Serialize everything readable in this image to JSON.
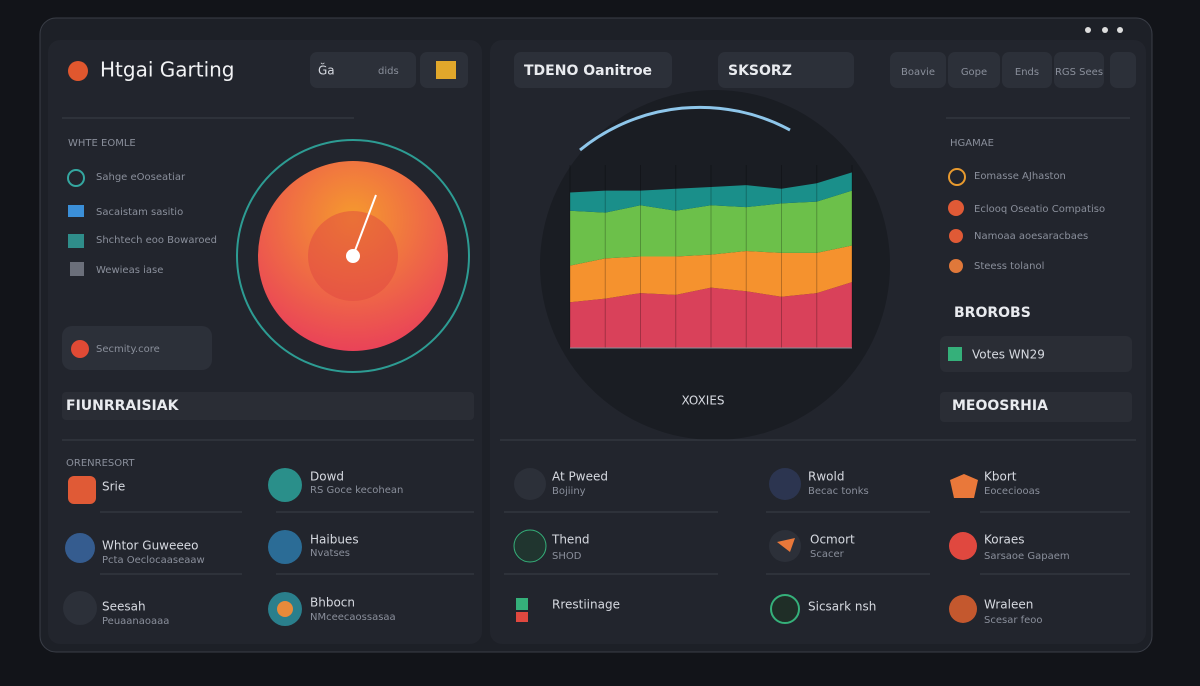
{
  "left": {
    "brand": "Htgai Garting",
    "buttons": [
      "Ğa",
      "dids"
    ],
    "section_title": "WHTE EOMLE",
    "items": [
      "Sahge eOoseatiar",
      "Sacaistam sasitio",
      "Shchtech eoo Bowaroed",
      "Wewieas iase"
    ],
    "security": "Secmity.core",
    "banner": "FIUNRRAISIAK",
    "list_title": "ORENRESORT",
    "list": [
      {
        "title": "Srie",
        "subtitle": null
      },
      {
        "title": "Dowd",
        "subtitle": "RS Goce kecohean"
      },
      {
        "title": "Whtor Guweeeo",
        "subtitle": "Pcta Oeclocaaseaaw"
      },
      {
        "title": "Haibues",
        "subtitle": "Nvatses"
      },
      {
        "title": "Seesah",
        "subtitle": "Peuaanaoaaa"
      },
      {
        "title": "Bhbocn",
        "subtitle": "NMceecaossasaa"
      }
    ]
  },
  "center": {
    "tabs": [
      "TDENO Oanitroe",
      "SKSORZ"
    ]
  },
  "right": {
    "buttons": [
      "Boavie",
      "Gope",
      "Ends",
      "RGS Sees"
    ],
    "section_title": "HGAMAE",
    "items": [
      "Eomasse AJhaston",
      "Eclooq Oseatio Compatiso",
      "Namoaa aoesaracbaes",
      "Steess tolanol"
    ],
    "subtitle": "BROROBS",
    "status": "Votes WN29",
    "banner": "MEOOSRHIA"
  },
  "bottom": [
    {
      "title": "At Pweed",
      "subtitle": "Bojiiny"
    },
    {
      "title": "Rwold",
      "subtitle": "Becac tonks"
    },
    {
      "title": "Kbort",
      "subtitle": "Eoceciooas"
    },
    {
      "title": "Thend",
      "subtitle": "SHOD"
    },
    {
      "title": "Ocmort",
      "subtitle": "Scacer"
    },
    {
      "title": "Koraes",
      "subtitle": "Sarsaoe Gapaem"
    },
    {
      "title": "Rrestiinage",
      "subtitle": null
    },
    {
      "title": "Sicsark nsh",
      "subtitle": null
    },
    {
      "title": "Wraleen",
      "subtitle": "Scesar feoo"
    }
  ],
  "chart_data": {
    "type": "stacked-area",
    "x_label": "XOXIES",
    "ylim": [
      0,
      100
    ],
    "series": [
      {
        "name": null,
        "color": "#d9415a",
        "values": [
          25,
          27,
          30,
          29,
          33,
          31,
          28,
          30,
          36
        ]
      },
      {
        "name": null,
        "color": "#f5922e",
        "values": [
          20,
          22,
          20,
          21,
          18,
          22,
          24,
          22,
          20
        ]
      },
      {
        "name": null,
        "color": "#6cc04a",
        "values": [
          30,
          25,
          28,
          25,
          27,
          24,
          27,
          28,
          30
        ]
      },
      {
        "name": null,
        "color": "#1a8f8a",
        "values": [
          10,
          12,
          8,
          12,
          10,
          12,
          8,
          10,
          10
        ]
      }
    ]
  }
}
